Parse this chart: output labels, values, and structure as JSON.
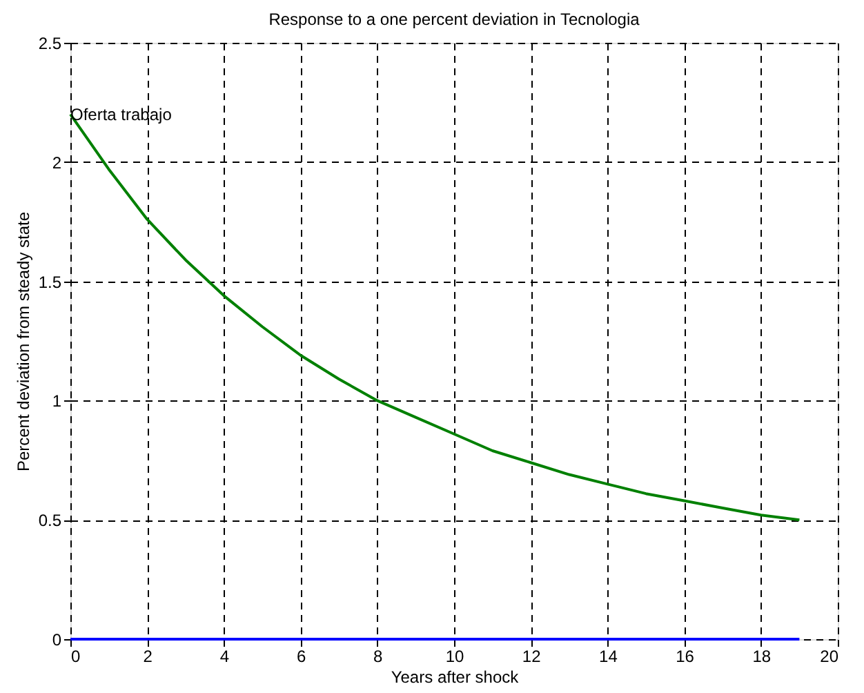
{
  "chart_data": {
    "type": "line",
    "title": "Response to a one percent deviation in Tecnologia",
    "xlabel": "Years after shock",
    "ylabel": "Percent deviation from steady state",
    "x": [
      0,
      1,
      2,
      3,
      4,
      5,
      6,
      7,
      8,
      9,
      10,
      11,
      12,
      13,
      14,
      15,
      16,
      17,
      18,
      19
    ],
    "series": [
      {
        "color": "#008000",
        "values": [
          2.2,
          1.97,
          1.76,
          1.59,
          1.44,
          1.31,
          1.19,
          1.09,
          1.0,
          0.93,
          0.86,
          0.79,
          0.74,
          0.69,
          0.65,
          0.61,
          0.58,
          0.55,
          0.52,
          0.5
        ]
      },
      {
        "color": "#0000ff",
        "values": [
          0,
          0,
          0,
          0,
          0,
          0,
          0,
          0,
          0,
          0,
          0,
          0,
          0,
          0,
          0,
          0,
          0,
          0,
          0,
          0
        ]
      }
    ],
    "annotations": [
      {
        "text": "Oferta trabajo",
        "x": 0,
        "y": 2.2
      }
    ],
    "xlim": [
      0,
      20
    ],
    "xticks": [
      0,
      2,
      4,
      6,
      8,
      10,
      12,
      14,
      16,
      18,
      20
    ],
    "ylim": [
      0,
      2.5
    ],
    "yticks": [
      0,
      0.5,
      1,
      1.5,
      2,
      2.5
    ],
    "grid": true,
    "marker": "none",
    "line_style": "solid"
  }
}
